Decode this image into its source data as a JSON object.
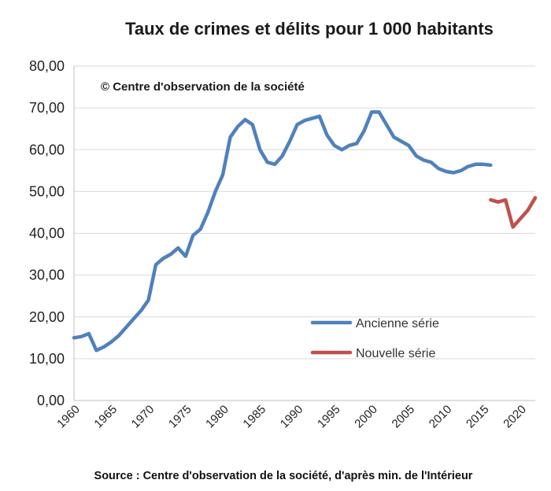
{
  "chart_data": {
    "type": "line",
    "title": "Taux de crimes et délits pour 1 000 habitants",
    "annotation": "© Centre  d'observation de la société",
    "source": "Source : Centre d'observation de la société, d'après min. de l'Intérieur",
    "xlabel": "",
    "ylabel": "",
    "xlim": [
      1960,
      2022
    ],
    "ylim": [
      0,
      80
    ],
    "y_ticks": [
      "0,00",
      "10,00",
      "20,00",
      "30,00",
      "40,00",
      "50,00",
      "60,00",
      "70,00",
      "80,00"
    ],
    "x_ticks": [
      "1960",
      "1965",
      "1970",
      "1975",
      "1980",
      "1985",
      "1990",
      "1995",
      "2000",
      "2005",
      "2010",
      "2015",
      "2020"
    ],
    "grid": true,
    "legend_position": "bottom-right",
    "series": [
      {
        "name": "Ancienne série",
        "color": "#4f81bd",
        "x": [
          1960,
          1961,
          1962,
          1963,
          1964,
          1965,
          1966,
          1967,
          1968,
          1969,
          1970,
          1971,
          1972,
          1973,
          1974,
          1975,
          1976,
          1977,
          1978,
          1979,
          1980,
          1981,
          1982,
          1983,
          1984,
          1985,
          1986,
          1987,
          1988,
          1989,
          1990,
          1991,
          1992,
          1993,
          1994,
          1995,
          1996,
          1997,
          1998,
          1999,
          2000,
          2001,
          2002,
          2003,
          2004,
          2005,
          2006,
          2007,
          2008,
          2009,
          2010,
          2011,
          2012,
          2013,
          2014,
          2015,
          2016
        ],
        "values": [
          15.0,
          15.3,
          16.0,
          12.0,
          12.8,
          14.0,
          15.5,
          17.5,
          19.5,
          21.5,
          24.0,
          32.5,
          34.0,
          35.0,
          36.5,
          34.5,
          39.5,
          41.0,
          45.0,
          50.0,
          54.0,
          63.0,
          65.5,
          67.2,
          66.0,
          60.0,
          57.0,
          56.5,
          58.5,
          62.0,
          66.0,
          67.0,
          67.5,
          68.0,
          63.5,
          61.0,
          60.0,
          61.0,
          61.5,
          64.5,
          69.0,
          69.0,
          66.0,
          63.0,
          62.0,
          61.0,
          58.5,
          57.5,
          57.0,
          55.5,
          54.8,
          54.5,
          55.0,
          56.0,
          56.5,
          56.5,
          56.3
        ]
      },
      {
        "name": "Nouvelle série",
        "color": "#c0504d",
        "x": [
          2016,
          2017,
          2018,
          2019,
          2020,
          2021,
          2022
        ],
        "values": [
          48.0,
          47.5,
          48.0,
          41.5,
          43.5,
          45.5,
          48.5
        ]
      }
    ]
  }
}
